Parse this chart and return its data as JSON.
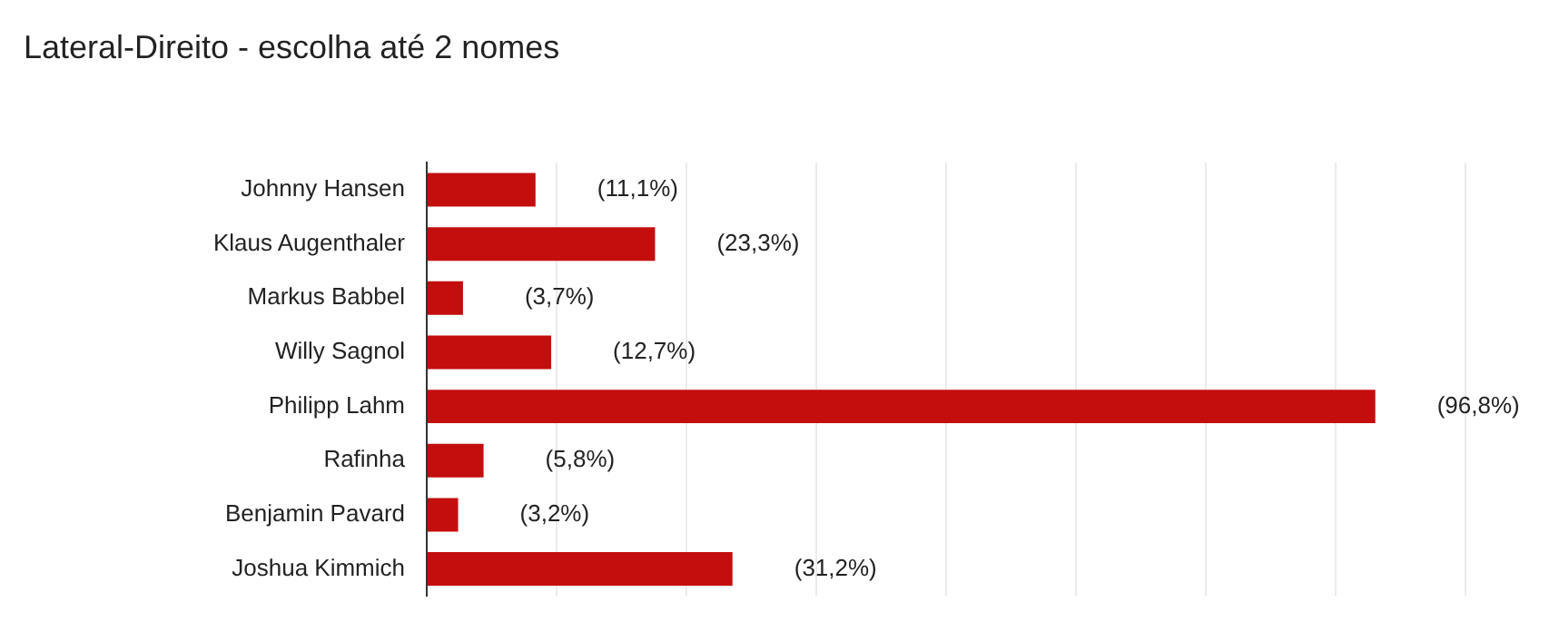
{
  "chart_data": {
    "type": "bar",
    "orientation": "horizontal",
    "title": "Lateral-Direito - escolha até 2 nomes",
    "categories": [
      "Johnny Hansen",
      "Klaus Augenthaler",
      "Markus Babbel",
      "Willy Sagnol",
      "Philipp Lahm",
      "Rafinha",
      "Benjamin Pavard",
      "Joshua Kimmich"
    ],
    "values": [
      11.1,
      23.3,
      3.7,
      12.7,
      96.8,
      5.8,
      3.2,
      31.2
    ],
    "value_labels": [
      "(11,1%)",
      "(23,3%)",
      "(3,7%)",
      "(12,7%)",
      "(96,8%)",
      "(5,8%)",
      "(3,2%)",
      "(31,2%)"
    ],
    "color": "#c40e0e",
    "xlim": [
      0,
      106
    ],
    "xticks": [
      {
        "value": 0,
        "label": null
      },
      {
        "value": 13.25,
        "label": null
      },
      {
        "value": 26.5,
        "label": null
      },
      {
        "value": 39.75,
        "label": null
      },
      {
        "value": 53,
        "label": null
      },
      {
        "value": 66.25,
        "label": null
      },
      {
        "value": 79.5,
        "label": null
      },
      {
        "value": 92.75,
        "label": null
      },
      {
        "value": 106,
        "label": null
      }
    ],
    "grid": "x",
    "tick_labels": "y",
    "legend": false
  }
}
